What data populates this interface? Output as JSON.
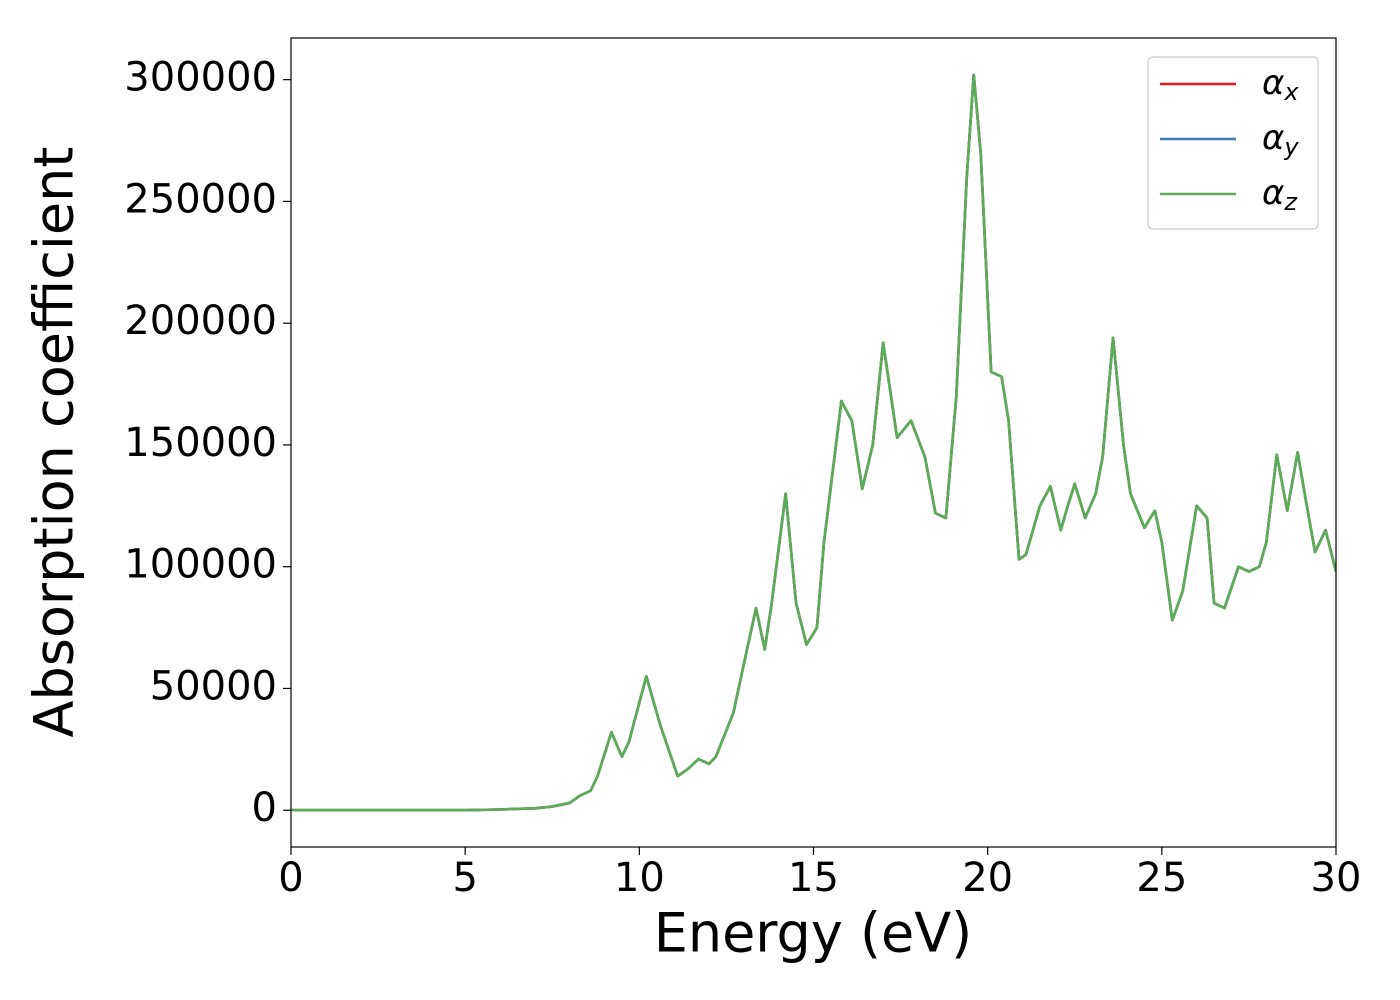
{
  "chart_data": {
    "type": "line",
    "xlabel": "Energy (eV)",
    "ylabel": "Absorption coefficient",
    "x": [
      0,
      1,
      2,
      3,
      4,
      5,
      6,
      7,
      7.5,
      8,
      8.3,
      8.6,
      8.8,
      9.2,
      9.5,
      9.7,
      10.2,
      10.6,
      11.1,
      11.4,
      11.7,
      12.0,
      12.2,
      12.7,
      13.0,
      13.35,
      13.6,
      13.8,
      14.2,
      14.5,
      14.8,
      15.1,
      15.3,
      15.8,
      16.1,
      16.4,
      16.7,
      17.0,
      17.4,
      17.8,
      18.2,
      18.5,
      18.8,
      19.1,
      19.4,
      19.6,
      19.8,
      20.1,
      20.4,
      20.6,
      20.9,
      21.1,
      21.5,
      21.8,
      22.1,
      22.3,
      22.5,
      22.8,
      23.1,
      23.3,
      23.6,
      23.9,
      24.1,
      24.5,
      24.8,
      25.0,
      25.3,
      25.6,
      26.0,
      26.3,
      26.5,
      26.8,
      27.2,
      27.5,
      27.8,
      28.0,
      28.3,
      28.6,
      28.9,
      29.1,
      29.4,
      29.7,
      30.0
    ],
    "series": [
      {
        "name": "αx",
        "color": "#e41a1c",
        "values": [
          0,
          0,
          0,
          0,
          0,
          0,
          300,
          800,
          1500,
          3000,
          6000,
          8000,
          14000,
          32000,
          22000,
          28000,
          55000,
          35000,
          14000,
          17000,
          21000,
          19000,
          22000,
          40000,
          60000,
          83000,
          66000,
          85000,
          130000,
          85000,
          68000,
          75000,
          110000,
          168000,
          160000,
          132000,
          150000,
          192000,
          153000,
          160000,
          145000,
          122000,
          120000,
          170000,
          260000,
          302000,
          270000,
          180000,
          178000,
          160000,
          103000,
          105000,
          125000,
          133000,
          115000,
          125000,
          134000,
          120000,
          130000,
          145000,
          194000,
          150000,
          130000,
          116000,
          123000,
          110000,
          78000,
          90000,
          125000,
          120000,
          85000,
          83000,
          100000,
          98000,
          100000,
          110000,
          146000,
          123000,
          147000,
          130000,
          106000,
          115000,
          98000
        ]
      },
      {
        "name": "αy",
        "color": "#377eb8",
        "values": [
          0,
          0,
          0,
          0,
          0,
          0,
          300,
          800,
          1500,
          3000,
          6000,
          8000,
          14000,
          32000,
          22000,
          28000,
          55000,
          35000,
          14000,
          17000,
          21000,
          19000,
          22000,
          40000,
          60000,
          83000,
          66000,
          85000,
          130000,
          85000,
          68000,
          75000,
          110000,
          168000,
          160000,
          132000,
          150000,
          192000,
          153000,
          160000,
          145000,
          122000,
          120000,
          170000,
          260000,
          302000,
          270000,
          180000,
          178000,
          160000,
          103000,
          105000,
          125000,
          133000,
          115000,
          125000,
          134000,
          120000,
          130000,
          145000,
          194000,
          150000,
          130000,
          116000,
          123000,
          110000,
          78000,
          90000,
          125000,
          120000,
          85000,
          83000,
          100000,
          98000,
          100000,
          110000,
          146000,
          123000,
          147000,
          130000,
          106000,
          115000,
          98000
        ]
      },
      {
        "name": "αz",
        "color": "#5aad55",
        "values": [
          0,
          0,
          0,
          0,
          0,
          0,
          300,
          800,
          1500,
          3000,
          6000,
          8000,
          14000,
          32000,
          22000,
          28000,
          55000,
          35000,
          14000,
          17000,
          21000,
          19000,
          22000,
          40000,
          60000,
          83000,
          66000,
          85000,
          130000,
          85000,
          68000,
          75000,
          110000,
          168000,
          160000,
          132000,
          150000,
          192000,
          153000,
          160000,
          145000,
          122000,
          120000,
          170000,
          260000,
          302000,
          270000,
          180000,
          178000,
          160000,
          103000,
          105000,
          125000,
          133000,
          115000,
          125000,
          134000,
          120000,
          130000,
          145000,
          194000,
          150000,
          130000,
          116000,
          123000,
          110000,
          78000,
          90000,
          125000,
          120000,
          85000,
          83000,
          100000,
          98000,
          100000,
          110000,
          146000,
          123000,
          147000,
          130000,
          106000,
          115000,
          98000
        ]
      }
    ],
    "xlim": [
      0,
      30
    ],
    "xticks": [
      0,
      5,
      10,
      15,
      20,
      25,
      30
    ],
    "ylim": [
      -15100,
      317100
    ],
    "yticks": [
      0,
      50000,
      100000,
      150000,
      200000,
      250000,
      300000
    ],
    "legend": "upper right"
  }
}
